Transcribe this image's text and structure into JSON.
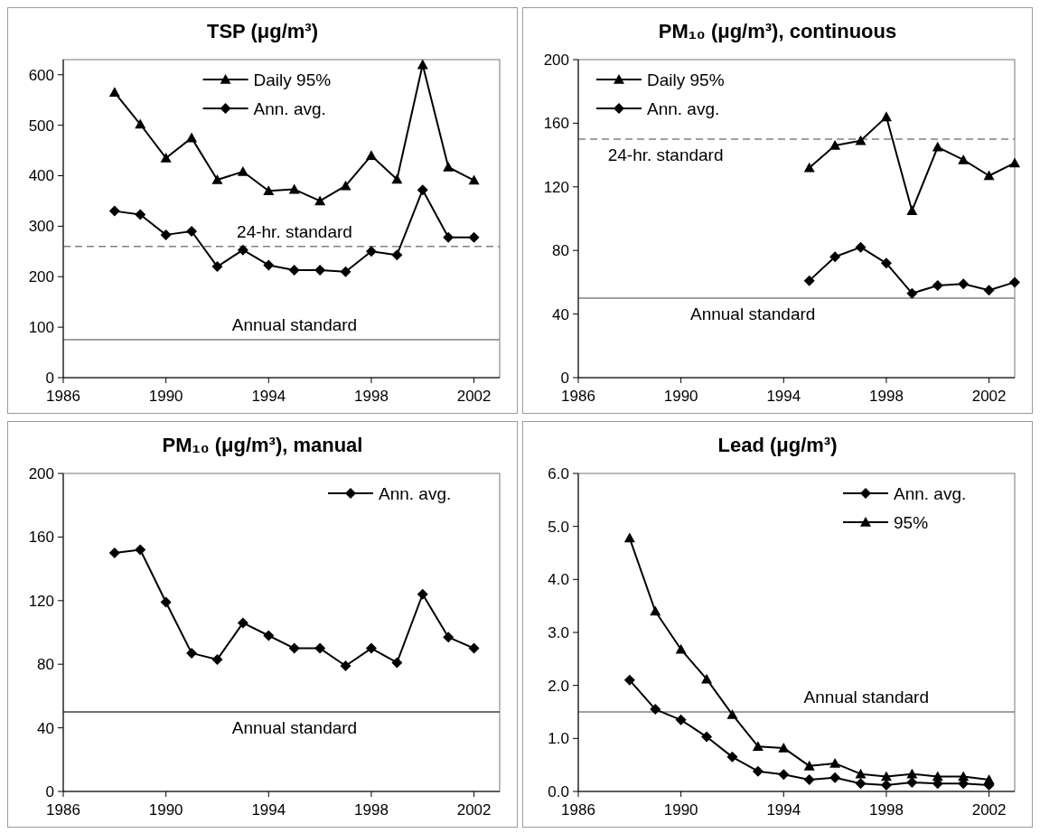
{
  "chart_data": [
    {
      "type": "line",
      "title": "TSP (μg/m³)",
      "x": [
        1988,
        1989,
        1990,
        1991,
        1992,
        1993,
        1994,
        1995,
        1996,
        1997,
        1998,
        1999,
        2000,
        2001,
        2002
      ],
      "xlim": [
        1986,
        2003
      ],
      "xticks": [
        1986,
        1990,
        1994,
        1998,
        2002
      ],
      "ylim": [
        0,
        630
      ],
      "yticks": [
        0,
        100,
        200,
        300,
        400,
        500,
        600
      ],
      "legend": "top",
      "grid": false,
      "series": [
        {
          "name": "Daily 95%",
          "color": "#000000",
          "marker": "triangle",
          "values": [
            565,
            502,
            435,
            475,
            392,
            408,
            370,
            373,
            350,
            380,
            440,
            393,
            620,
            417,
            391
          ]
        },
        {
          "name": "Ann. avg.",
          "color": "#000000",
          "marker": "diamond",
          "values": [
            330,
            323,
            283,
            290,
            220,
            253,
            223,
            213,
            213,
            210,
            250,
            243,
            372,
            278,
            278
          ]
        }
      ],
      "ref_lines": [
        {
          "axis": "y",
          "value": 260,
          "label": "24-hr. standard",
          "color": "#808080",
          "line_style": "dashed"
        },
        {
          "axis": "y",
          "value": 75,
          "label": "Annual standard",
          "color": "#808080",
          "line_style": "solid"
        }
      ]
    },
    {
      "type": "line",
      "title": "PM₁₀ (μg/m³), continuous",
      "x": [
        1995,
        1996,
        1997,
        1998,
        1999,
        2000,
        2001,
        2002,
        2003
      ],
      "xlim": [
        1986,
        2003
      ],
      "xticks": [
        1986,
        1990,
        1994,
        1998,
        2002
      ],
      "ylim": [
        0,
        200
      ],
      "yticks": [
        0,
        40,
        80,
        120,
        160,
        200
      ],
      "legend": "top left",
      "grid": false,
      "series": [
        {
          "name": "Daily 95%",
          "color": "#000000",
          "marker": "triangle",
          "values": [
            132,
            146,
            149,
            164,
            105,
            145,
            137,
            127,
            135
          ]
        },
        {
          "name": "Ann. avg.",
          "color": "#000000",
          "marker": "diamond",
          "values": [
            61,
            76,
            82,
            72,
            53,
            58,
            59,
            55,
            60
          ]
        }
      ],
      "ref_lines": [
        {
          "axis": "y",
          "value": 150,
          "label": "24-hr. standard",
          "color": "#808080",
          "line_style": "dashed"
        },
        {
          "axis": "y",
          "value": 50,
          "label": "Annual standard",
          "color": "#808080",
          "line_style": "solid"
        }
      ]
    },
    {
      "type": "line",
      "title": "PM₁₀ (μg/m³),  manual",
      "x": [
        1988,
        1989,
        1990,
        1991,
        1992,
        1993,
        1994,
        1995,
        1996,
        1997,
        1998,
        1999,
        2000,
        2001,
        2002
      ],
      "xlim": [
        1986,
        2003
      ],
      "xticks": [
        1986,
        1990,
        1994,
        1998,
        2002
      ],
      "ylim": [
        0,
        200
      ],
      "yticks": [
        0,
        40,
        80,
        120,
        160,
        200
      ],
      "legend": "top right",
      "grid": false,
      "series": [
        {
          "name": "Ann. avg.",
          "color": "#000000",
          "marker": "diamond",
          "values": [
            150,
            152,
            119,
            87,
            83,
            106,
            98,
            90,
            90,
            79,
            90,
            81,
            124,
            97,
            90
          ]
        }
      ],
      "ref_lines": [
        {
          "axis": "y",
          "value": 50,
          "label": "Annual standard",
          "color": "#404040",
          "line_style": "solid"
        }
      ]
    },
    {
      "type": "line",
      "title": "Lead (μg/m³)",
      "x": [
        1988,
        1989,
        1990,
        1991,
        1992,
        1993,
        1994,
        1995,
        1996,
        1997,
        1998,
        1999,
        2000,
        2001,
        2002
      ],
      "xlim": [
        1986,
        2003
      ],
      "xticks": [
        1986,
        1990,
        1994,
        1998,
        2002
      ],
      "ylim": [
        0,
        6
      ],
      "yticks": [
        {
          "value": 0,
          "label": "0.0"
        },
        {
          "value": 1,
          "label": "1.0"
        },
        {
          "value": 2,
          "label": "2.0"
        },
        {
          "value": 3,
          "label": "3.0"
        },
        {
          "value": 4,
          "label": "4.0"
        },
        {
          "value": 5,
          "label": "5.0"
        },
        {
          "value": 6,
          "label": "6.0"
        }
      ],
      "legend": "top right",
      "grid": false,
      "series": [
        {
          "name": "Ann. avg.",
          "color": "#000000",
          "marker": "diamond",
          "values": [
            2.1,
            1.55,
            1.35,
            1.03,
            0.65,
            0.38,
            0.32,
            0.22,
            0.26,
            0.15,
            0.12,
            0.17,
            0.15,
            0.15,
            0.12
          ]
        },
        {
          "name": "95%",
          "color": "#000000",
          "marker": "triangle",
          "values": [
            4.78,
            3.4,
            2.68,
            2.12,
            1.45,
            0.85,
            0.82,
            0.48,
            0.53,
            0.33,
            0.28,
            0.33,
            0.28,
            0.28,
            0.22
          ]
        }
      ],
      "ref_lines": [
        {
          "axis": "y",
          "value": 1.5,
          "label": "Annual standard",
          "color": "#808080",
          "line_style": "solid"
        }
      ]
    }
  ]
}
